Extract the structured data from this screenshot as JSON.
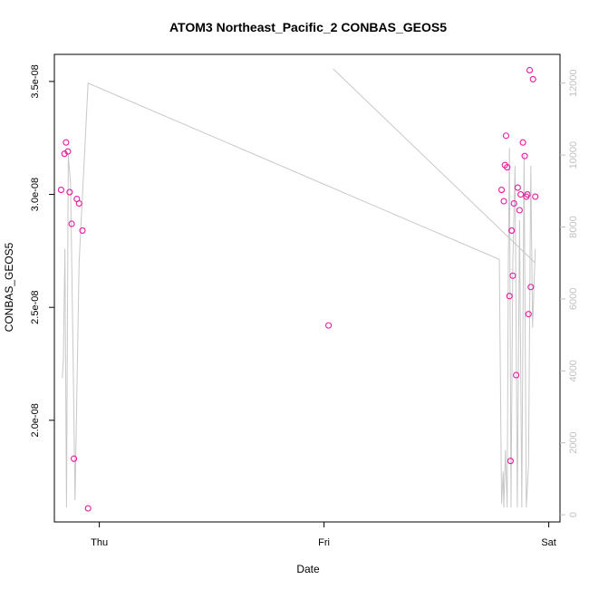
{
  "chart_data": {
    "type": "scatter",
    "title": "ATOM3 Northeast_Pacific_2 CONBAS_GEOS5",
    "xlabel": "Date",
    "ylabel": "CONBAS_GEOS5",
    "x_ticks": [
      {
        "label": "Thu",
        "x": 0.0
      },
      {
        "label": "Fri",
        "x": 1.0
      },
      {
        "label": "Sat",
        "x": 2.0
      }
    ],
    "xlim": [
      -0.2,
      2.05
    ],
    "y_ticks": [
      {
        "label": "2.0e-08",
        "value": 2e-08
      },
      {
        "label": "2.5e-08",
        "value": 2.5e-08
      },
      {
        "label": "3.0e-08",
        "value": 3e-08
      },
      {
        "label": "3.5e-08",
        "value": 3.5e-08
      }
    ],
    "ylim": [
      1.55e-08,
      3.62e-08
    ],
    "y2_ticks": [
      "0",
      "2000",
      "4000",
      "6000",
      "8000",
      "10000",
      "12000"
    ],
    "y2lim": [
      -200,
      12800
    ],
    "grid": false,
    "colors": {
      "points": "#e8199f",
      "altitude_line": "#c8c8c8",
      "right_axis": "#c0c0c0"
    },
    "series": [
      {
        "marker": "circle",
        "points": [
          {
            "x": -0.17,
            "y": 3.02e-08
          },
          {
            "x": -0.155,
            "y": 3.18e-08
          },
          {
            "x": -0.148,
            "y": 3.23e-08
          },
          {
            "x": -0.14,
            "y": 3.19e-08
          },
          {
            "x": -0.132,
            "y": 3.01e-08
          },
          {
            "x": -0.123,
            "y": 2.87e-08
          },
          {
            "x": -0.113,
            "y": 1.83e-08
          },
          {
            "x": -0.1,
            "y": 2.98e-08
          },
          {
            "x": -0.09,
            "y": 2.96e-08
          },
          {
            "x": -0.075,
            "y": 2.84e-08
          },
          {
            "x": -0.05,
            "y": 1.61e-08
          },
          {
            "x": 1.02,
            "y": 2.42e-08
          },
          {
            "x": 1.79,
            "y": 3.02e-08
          },
          {
            "x": 1.8,
            "y": 2.97e-08
          },
          {
            "x": 1.805,
            "y": 3.13e-08
          },
          {
            "x": 1.81,
            "y": 3.26e-08
          },
          {
            "x": 1.815,
            "y": 3.12e-08
          },
          {
            "x": 1.825,
            "y": 2.55e-08
          },
          {
            "x": 1.83,
            "y": 1.82e-08
          },
          {
            "x": 1.835,
            "y": 2.84e-08
          },
          {
            "x": 1.84,
            "y": 2.64e-08
          },
          {
            "x": 1.845,
            "y": 2.96e-08
          },
          {
            "x": 1.855,
            "y": 2.2e-08
          },
          {
            "x": 1.862,
            "y": 3.03e-08
          },
          {
            "x": 1.87,
            "y": 2.93e-08
          },
          {
            "x": 1.875,
            "y": 3e-08
          },
          {
            "x": 1.885,
            "y": 3.23e-08
          },
          {
            "x": 1.893,
            "y": 3.17e-08
          },
          {
            "x": 1.9,
            "y": 2.99e-08
          },
          {
            "x": 1.905,
            "y": 3e-08
          },
          {
            "x": 1.91,
            "y": 2.47e-08
          },
          {
            "x": 1.915,
            "y": 3.55e-08
          },
          {
            "x": 1.92,
            "y": 2.59e-08
          },
          {
            "x": 1.93,
            "y": 3.51e-08
          },
          {
            "x": 1.94,
            "y": 2.99e-08
          }
        ]
      }
    ],
    "altitude_series": [
      [
        -0.165,
        3800
      ],
      [
        -0.16,
        4300
      ],
      [
        -0.153,
        7400
      ],
      [
        -0.146,
        200
      ],
      [
        -0.138,
        10000
      ],
      [
        -0.128,
        9200
      ],
      [
        -0.118,
        5000
      ],
      [
        -0.108,
        400
      ],
      [
        -0.09,
        7000
      ],
      [
        -0.05,
        12000
      ],
      [
        1.78,
        7100
      ],
      [
        1.79,
        300
      ],
      [
        1.797,
        1200
      ],
      [
        1.8,
        200
      ],
      [
        1.807,
        1800
      ],
      [
        1.815,
        200
      ],
      [
        1.82,
        7000
      ],
      [
        1.825,
        10200
      ],
      [
        1.832,
        200
      ],
      [
        1.84,
        7000
      ],
      [
        1.85,
        9700
      ],
      [
        1.86,
        200
      ],
      [
        1.87,
        8200
      ],
      [
        1.88,
        200
      ],
      [
        1.89,
        10000
      ],
      [
        1.9,
        200
      ],
      [
        1.91,
        1400
      ],
      [
        1.92,
        9700
      ],
      [
        1.928,
        5200
      ],
      [
        1.94,
        7400
      ],
      null,
      [
        1.04,
        12400
      ],
      [
        1.94,
        7000
      ]
    ]
  }
}
